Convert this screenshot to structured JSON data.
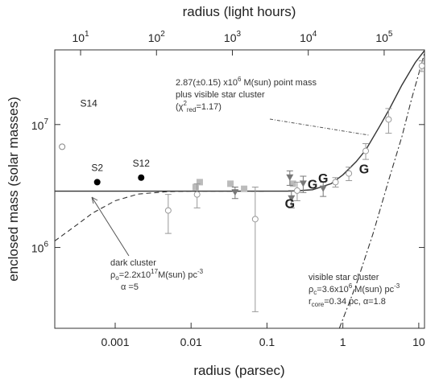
{
  "chart_data": {
    "type": "scatter",
    "xlabel": "radius (parsec)",
    "x2label": "radius (light hours)",
    "ylabel": "enclosed mass (solar masses)",
    "log_x": true,
    "log_y": true,
    "xlim": [
      0.00016,
      11.9
    ],
    "x2lim": [
      4.57,
      340000
    ],
    "ylim": [
      220000,
      40500000
    ],
    "xticks": [
      0.001,
      0.01,
      0.1,
      1,
      10
    ],
    "x2ticks": [
      {
        "value": 10,
        "label": "10",
        "power": "1"
      },
      {
        "value": 100,
        "label": "10",
        "power": "2"
      },
      {
        "value": 1000,
        "label": "10",
        "power": "3"
      },
      {
        "value": 10000,
        "label": "10",
        "power": "4"
      },
      {
        "value": 100000,
        "label": "10",
        "power": "5"
      }
    ],
    "yticks": [
      {
        "value": 1000000,
        "label": "10",
        "power": "6"
      },
      {
        "value": 10000000,
        "label": "10",
        "power": "7"
      }
    ],
    "series": [
      {
        "marker": "circle-filled",
        "color": "#000000",
        "x": [
          0.00058,
          0.0022
        ],
        "values": [
          3400000,
          3700000
        ],
        "labels": [
          "S2",
          "S12"
        ]
      },
      {
        "marker": "circle-open",
        "color": "#888888",
        "x": [
          0.0002
        ],
        "values": [
          6600000
        ],
        "labels": [
          "S14"
        ]
      },
      {
        "marker": "square",
        "color": "#bbbbbb",
        "x": [
          0.0115,
          0.013,
          0.033,
          0.05,
          0.22
        ],
        "values": [
          3100000,
          3400000,
          3300000,
          3000000,
          3300000
        ]
      },
      {
        "marker": "triangle-down",
        "color": "#777777",
        "x": [
          0.038,
          0.2,
          0.21,
          0.3,
          0.55
        ],
        "values": [
          2800000,
          3700000,
          2500000,
          3300000,
          3000000
        ],
        "errors": [
          300000,
          500000,
          400000,
          500000,
          400000
        ]
      },
      {
        "marker": "circle-open",
        "color": "#999999",
        "x": [
          0.005,
          0.07,
          0.25,
          0.012,
          0.8,
          1.2,
          2,
          4,
          11
        ],
        "values": [
          2000000,
          1700000,
          2900000,
          2700000,
          3400000,
          4000000,
          6100000,
          11000000,
          30000000
        ],
        "errors": [
          700000,
          1400000,
          500000,
          600000,
          300000,
          500000,
          900000,
          2500000,
          3000000
        ]
      },
      {
        "marker": "G",
        "color": "#bbbbbb",
        "x": [
          0.2,
          0.4,
          0.55,
          1.9
        ],
        "values": [
          2300000,
          3300000,
          3700000,
          4400000
        ]
      }
    ],
    "curves": [
      {
        "style": "solid",
        "color": "#333333",
        "x": [
          0.00016,
          0.2,
          0.4,
          0.7,
          1,
          1.5,
          2,
          3,
          4,
          6,
          9,
          11.9
        ],
        "values": [
          2870000,
          2870000,
          2950000,
          3300000,
          3900000,
          5000000,
          6200000,
          9500000,
          13000000,
          21000000,
          32000000,
          40000000
        ]
      },
      {
        "style": "dashed",
        "color": "#333333",
        "x": [
          0.00016,
          0.0003,
          0.0005,
          0.001,
          0.002,
          0.005,
          0.01,
          0.1
        ],
        "values": [
          1130000,
          1500000,
          1900000,
          2400000,
          2720000,
          2850000,
          2870000,
          2870000
        ]
      },
      {
        "style": "dashdot",
        "color": "#333333",
        "x": [
          0.9,
          1.5,
          2.5,
          4,
          6,
          8,
          10,
          11.9
        ],
        "values": [
          220000,
          500000,
          1300000,
          3500000,
          8000000,
          16000000,
          26000000,
          38000000
        ]
      }
    ],
    "annotations": [
      {
        "lines": [
          [
            {
              "t": "2.87(±0.15) x10"
            },
            {
              "t": "6",
              "s": "sup"
            },
            {
              "t": " M(sun) point mass"
            }
          ],
          [
            {
              "t": "plus visible star cluster"
            }
          ],
          [
            {
              "t": "(χ"
            },
            {
              "t": "2",
              "s": "sup"
            },
            {
              "t": "red",
              "s": "sub"
            },
            {
              "t": "=1.17)"
            }
          ]
        ]
      },
      {
        "lines": [
          [
            {
              "t": "dark cluster"
            }
          ],
          [
            {
              "t": "ρ"
            },
            {
              "t": "o",
              "s": "sub"
            },
            {
              "t": "=2.2x10"
            },
            {
              "t": "17",
              "s": "sup"
            },
            {
              "t": "M(sun) pc"
            },
            {
              "t": "-3",
              "s": "sup"
            }
          ],
          [
            {
              "t": "α =5"
            }
          ]
        ]
      },
      {
        "lines": [
          [
            {
              "t": "visible star cluster"
            }
          ],
          [
            {
              "t": "ρ"
            },
            {
              "t": "c",
              "s": "sub"
            },
            {
              "t": "=3.6x10"
            },
            {
              "t": "6",
              "s": "sup"
            },
            {
              "t": " M(sun) pc"
            },
            {
              "t": "-3",
              "s": "sup"
            }
          ],
          [
            {
              "t": "r"
            },
            {
              "t": "core",
              "s": "sub"
            },
            {
              "t": "=0.34 pc, α=1.8"
            }
          ]
        ]
      }
    ]
  }
}
